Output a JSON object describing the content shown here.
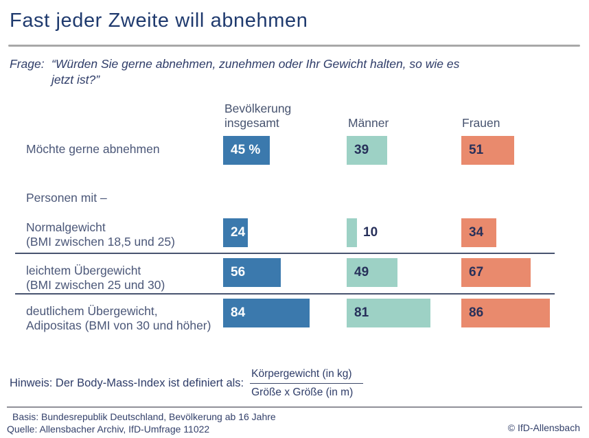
{
  "title": "Fast jeder Zweite will abnehmen",
  "question": {
    "label": "Frage:",
    "text": "“Würden Sie gerne abnehmen, zunehmen oder Ihr Gewicht halten, so wie es\njetzt ist?”"
  },
  "chart_data": {
    "type": "bar",
    "orientation": "horizontal",
    "unit": "%",
    "columns": [
      "Bevölkerung\ninsgesamt",
      "Männer",
      "Frauen"
    ],
    "group_note": "Personen mit –",
    "rows": [
      {
        "label": "Möchte gerne abnehmen",
        "values": [
          45,
          39,
          51
        ],
        "bar_labels": [
          "45 %",
          "39",
          "51"
        ]
      },
      {
        "label": "Normalgewicht\n(BMI zwischen 18,5 und 25)",
        "values": [
          24,
          10,
          34
        ],
        "bar_labels": [
          "24",
          "10",
          "34"
        ]
      },
      {
        "label": "leichtem Übergewicht\n(BMI zwischen 25 und 30)",
        "values": [
          56,
          49,
          67
        ],
        "bar_labels": [
          "56",
          "49",
          "67"
        ]
      },
      {
        "label": "deutlichem Übergewicht,\nAdipositas (BMI von 30 und höher)",
        "values": [
          84,
          81,
          86
        ],
        "bar_labels": [
          "84",
          "81",
          "86"
        ]
      }
    ],
    "colors": {
      "bevoelkerung_insgesamt": "#3b79ad",
      "maenner": "#9dd1c5",
      "frauen": "#e98a6d"
    },
    "xlim": [
      0,
      100
    ],
    "grid": false,
    "legend_position": "column-headers"
  },
  "hinweis": {
    "text": "Hinweis: Der Body-Mass-Index ist definiert als:",
    "fraction_numerator": "Körpergewicht (in kg)",
    "fraction_denominator": "Größe x Größe (in m)"
  },
  "footer": {
    "basis": "Basis: Bundesrepublik Deutschland, Bevölkerung ab 16 Jahre",
    "quelle": "Quelle: Allensbacher Archiv, IfD-Umfrage 11022",
    "copyright": "© IfD-Allensbach"
  }
}
